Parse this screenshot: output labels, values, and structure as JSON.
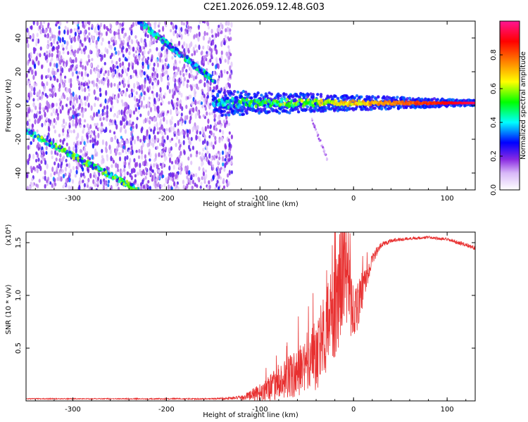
{
  "figure": {
    "title": "C2E1.2026.059.12.48.G03"
  },
  "colors": {
    "snr_line": "#e83030",
    "axis": "#000000",
    "background": "#ffffff"
  },
  "chart_data": [
    {
      "type": "heatmap",
      "title": "C2E1.2026.059.12.48.G03",
      "xlabel": "Height of straight line (km)",
      "ylabel": "Frequency (Hz)",
      "xlim": [
        -350,
        130
      ],
      "ylim": [
        -50,
        50
      ],
      "x_ticks": [
        -300,
        -200,
        -100,
        0,
        100
      ],
      "y_ticks": [
        -40,
        -20,
        0,
        20,
        40
      ],
      "colorbar": {
        "label": "Normalized spectral amplitude",
        "range": [
          0.0,
          1.0
        ],
        "ticks": [
          0.0,
          0.2,
          0.4,
          0.6,
          0.8
        ],
        "colormap": [
          "#ffffff",
          "#8a2be2",
          "#0000ff",
          "#00ffff",
          "#00ff00",
          "#ffff00",
          "#ff8000",
          "#ff0000",
          "#ff1493"
        ]
      },
      "features": [
        {
          "kind": "noise",
          "x_range": [
            -350,
            -130
          ],
          "y_range": [
            -50,
            50
          ],
          "amplitude": 0.1
        },
        {
          "kind": "ridge",
          "x": [
            -350,
            -230
          ],
          "y": [
            -15,
            -50
          ],
          "amplitude": 0.3
        },
        {
          "kind": "ridge",
          "x": [
            -230,
            -150
          ],
          "y": [
            50,
            15
          ],
          "amplitude": 0.25
        },
        {
          "kind": "carrier",
          "x_range": [
            -150,
            130
          ],
          "y_center": 1.5,
          "amplitude": 0.95
        },
        {
          "kind": "tail",
          "x": [
            -45,
            -28
          ],
          "y": [
            -8,
            -32
          ],
          "amplitude": 0.12
        }
      ]
    },
    {
      "type": "line",
      "xlabel": "Height of straight line (km)",
      "ylabel": "SNR (10 * v/v)",
      "y_multiplier": "(x10⁴)",
      "xlim": [
        -350,
        130
      ],
      "ylim": [
        0,
        1.6
      ],
      "x_ticks": [
        -300,
        -200,
        -100,
        0,
        100
      ],
      "y_ticks": [
        0.5,
        1.0,
        1.5
      ],
      "y_tick_labels": [
        "0.5",
        "1.0",
        "1.5"
      ],
      "series": [
        {
          "x": [
            -350,
            -300,
            -250,
            -200,
            -150,
            -120,
            -100,
            -90,
            -80,
            -70,
            -60,
            -50,
            -40,
            -30,
            -20,
            -15,
            -10,
            -5,
            0,
            10,
            20,
            30,
            40,
            60,
            80,
            100,
            120,
            130
          ],
          "y": [
            0.02,
            0.02,
            0.02,
            0.02,
            0.02,
            0.03,
            0.08,
            0.12,
            0.17,
            0.22,
            0.26,
            0.34,
            0.45,
            0.62,
            0.88,
            1.05,
            1.3,
            1.05,
            0.8,
            1.05,
            1.35,
            1.48,
            1.52,
            1.54,
            1.55,
            1.53,
            1.48,
            1.45
          ],
          "noise": [
            0.005,
            0.005,
            0.005,
            0.006,
            0.006,
            0.02,
            0.08,
            0.12,
            0.16,
            0.2,
            0.24,
            0.3,
            0.35,
            0.4,
            0.5,
            0.55,
            0.5,
            0.42,
            0.3,
            0.15,
            0.06,
            0.03,
            0.02,
            0.015,
            0.015,
            0.015,
            0.02,
            0.02
          ]
        }
      ]
    }
  ]
}
